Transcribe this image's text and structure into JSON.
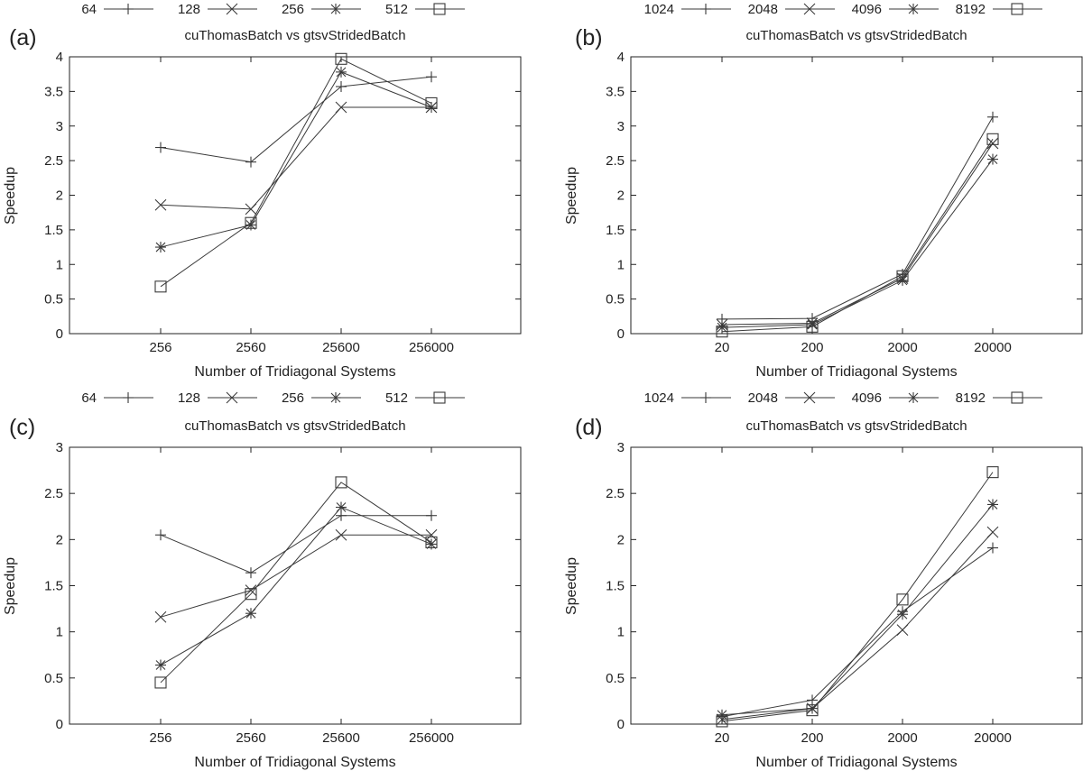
{
  "chart_data": [
    {
      "id": "a",
      "type": "line",
      "panel_label": "(a)",
      "title": "cuThomasBatch vs gtsvStridedBatch",
      "xlabel": "Number of Tridiagonal Systems",
      "ylabel": "Speedup",
      "categories": [
        "256",
        "2560",
        "25600",
        "256000"
      ],
      "ylim": [
        0,
        4
      ],
      "yticks": [
        "0",
        "0.5",
        "1",
        "1.5",
        "2",
        "2.5",
        "3",
        "3.5",
        "4"
      ],
      "legend_position": "top",
      "series": [
        {
          "name": "64",
          "marker": "plus",
          "values": [
            2.69,
            2.48,
            3.57,
            3.71
          ]
        },
        {
          "name": "128",
          "marker": "cross",
          "values": [
            1.86,
            1.8,
            3.27,
            3.27
          ]
        },
        {
          "name": "256",
          "marker": "star",
          "values": [
            1.25,
            1.57,
            3.78,
            3.27
          ]
        },
        {
          "name": "512",
          "marker": "square",
          "values": [
            0.68,
            1.6,
            3.97,
            3.33
          ]
        }
      ]
    },
    {
      "id": "b",
      "type": "line",
      "panel_label": "(b)",
      "title": "cuThomasBatch vs gtsvStridedBatch",
      "xlabel": "Number of Tridiagonal Systems",
      "ylabel": "Speedup",
      "categories": [
        "20",
        "200",
        "2000",
        "20000"
      ],
      "ylim": [
        0,
        4
      ],
      "yticks": [
        "0",
        "0.5",
        "1",
        "1.5",
        "2",
        "2.5",
        "3",
        "3.5",
        "4"
      ],
      "legend_position": "top",
      "series": [
        {
          "name": "1024",
          "marker": "plus",
          "values": [
            0.21,
            0.22,
            0.86,
            3.13
          ]
        },
        {
          "name": "2048",
          "marker": "cross",
          "values": [
            0.13,
            0.15,
            0.8,
            2.75
          ]
        },
        {
          "name": "4096",
          "marker": "star",
          "values": [
            0.09,
            0.13,
            0.77,
            2.52
          ]
        },
        {
          "name": "8192",
          "marker": "square",
          "values": [
            0.03,
            0.1,
            0.83,
            2.81
          ]
        }
      ]
    },
    {
      "id": "c",
      "type": "line",
      "panel_label": "(c)",
      "title": "cuThomasBatch vs gtsvStridedBatch",
      "xlabel": "Number of Tridiagonal Systems",
      "ylabel": "Speedup",
      "categories": [
        "256",
        "2560",
        "25600",
        "256000"
      ],
      "ylim": [
        0,
        3
      ],
      "yticks": [
        "0",
        "0.5",
        "1",
        "1.5",
        "2",
        "2.5",
        "3"
      ],
      "legend_position": "top",
      "series": [
        {
          "name": "64",
          "marker": "plus",
          "values": [
            2.05,
            1.64,
            2.26,
            2.26
          ]
        },
        {
          "name": "128",
          "marker": "cross",
          "values": [
            1.16,
            1.45,
            2.05,
            2.05
          ]
        },
        {
          "name": "256",
          "marker": "star",
          "values": [
            0.64,
            1.2,
            2.35,
            1.95
          ]
        },
        {
          "name": "512",
          "marker": "square",
          "values": [
            0.45,
            1.41,
            2.62,
            1.97
          ]
        }
      ]
    },
    {
      "id": "d",
      "type": "line",
      "panel_label": "(d)",
      "title": "cuThomasBatch vs gtsvStridedBatch",
      "xlabel": "Number of Tridiagonal Systems",
      "ylabel": "Speedup",
      "categories": [
        "20",
        "200",
        "2000",
        "20000"
      ],
      "ylim": [
        0,
        3
      ],
      "yticks": [
        "0",
        "0.5",
        "1",
        "1.5",
        "2",
        "2.5",
        "3"
      ],
      "legend_position": "top",
      "series": [
        {
          "name": "1024",
          "marker": "plus",
          "values": [
            0.08,
            0.26,
            1.22,
            1.91
          ]
        },
        {
          "name": "2048",
          "marker": "cross",
          "values": [
            0.05,
            0.17,
            1.02,
            2.08
          ]
        },
        {
          "name": "4096",
          "marker": "star",
          "values": [
            0.1,
            0.17,
            1.19,
            2.38
          ]
        },
        {
          "name": "8192",
          "marker": "square",
          "values": [
            0.03,
            0.15,
            1.35,
            2.73
          ]
        }
      ]
    }
  ]
}
